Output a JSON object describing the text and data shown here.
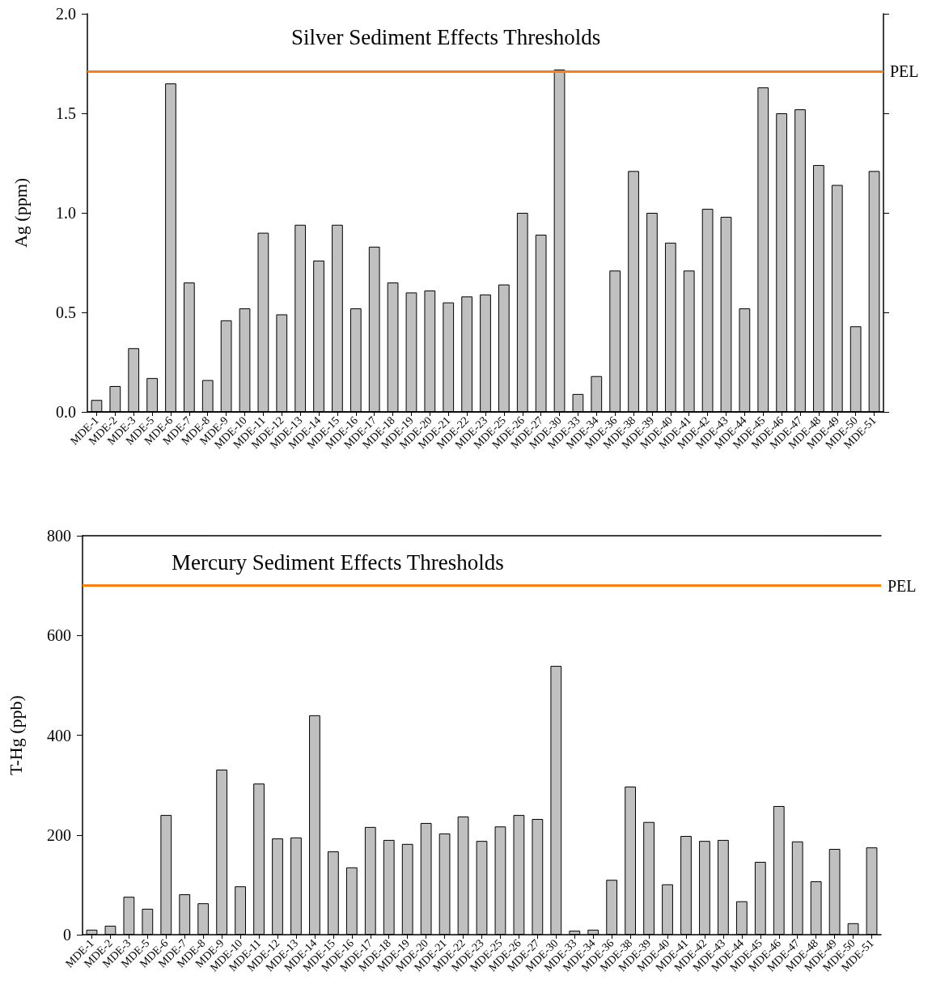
{
  "chart_data": [
    {
      "type": "bar",
      "title": "Silver Sediment Effects Thresholds",
      "ylabel": "Ag (ppm)",
      "categories": [
        "MDE-1",
        "MDE-2",
        "MDE-3",
        "MDE-5",
        "MDE-6",
        "MDE-7",
        "MDE-8",
        "MDE-9",
        "MDE-10",
        "MDE-11",
        "MDE-12",
        "MDE-13",
        "MDE-14",
        "MDE-15",
        "MDE-16",
        "MDE-17",
        "MDE-18",
        "MDE-19",
        "MDE-20",
        "MDE-21",
        "MDE-22",
        "MDE-23",
        "MDE-25",
        "MDE-26",
        "MDE-27",
        "MDE-30",
        "MDE-33",
        "MDE-34",
        "MDE-36",
        "MDE-38",
        "MDE-39",
        "MDE-40",
        "MDE-41",
        "MDE-42",
        "MDE-43",
        "MDE-44",
        "MDE-45",
        "MDE-46",
        "MDE-47",
        "MDE-48",
        "MDE-49",
        "MDE-50",
        "MDE-51"
      ],
      "values": [
        0.06,
        0.13,
        0.32,
        0.17,
        1.65,
        0.65,
        0.16,
        0.46,
        0.52,
        0.9,
        0.49,
        0.94,
        0.76,
        0.94,
        0.52,
        0.83,
        0.65,
        0.6,
        0.61,
        0.55,
        0.58,
        0.59,
        0.64,
        1.0,
        0.89,
        1.72,
        0.09,
        0.18,
        0.71,
        1.21,
        1.0,
        0.85,
        0.71,
        1.02,
        0.98,
        0.52,
        1.63,
        1.5,
        1.52,
        1.24,
        1.14,
        0.43,
        1.21
      ],
      "color": "#c0c0c0",
      "ylim": [
        0,
        2
      ],
      "yticks": [
        {
          "value": 0,
          "label": "0.0"
        },
        {
          "value": 0.5,
          "label": "0.5"
        },
        {
          "value": 1,
          "label": "1.0"
        },
        {
          "value": 1.5,
          "label": "1.5"
        },
        {
          "value": 2,
          "label": "2.0"
        }
      ],
      "ref_lines": [
        {
          "axis": "y",
          "value": 1.71,
          "label": "PEL",
          "color": "#ff7f0e"
        }
      ],
      "grid": false
    },
    {
      "type": "bar",
      "title": "Mercury Sediment Effects Thresholds",
      "ylabel": "T-Hg (ppb)",
      "categories": [
        "MDE-1",
        "MDE-2",
        "MDE-3",
        "MDE-5",
        "MDE-6",
        "MDE-7",
        "MDE-8",
        "MDE-9",
        "MDE-10",
        "MDE-11",
        "MDE-12",
        "MDE-13",
        "MDE-14",
        "MDE-15",
        "MDE-16",
        "MDE-17",
        "MDE-18",
        "MDE-19",
        "MDE-20",
        "MDE-21",
        "MDE-22",
        "MDE-23",
        "MDE-25",
        "MDE-26",
        "MDE-27",
        "MDE-30",
        "MDE-33",
        "MDE-34",
        "MDE-36",
        "MDE-38",
        "MDE-39",
        "MDE-40",
        "MDE-41",
        "MDE-42",
        "MDE-43",
        "MDE-44",
        "MDE-45",
        "MDE-46",
        "MDE-47",
        "MDE-48",
        "MDE-49",
        "MDE-50",
        "MDE-51"
      ],
      "values": [
        10,
        18,
        76,
        52,
        240,
        81,
        63,
        331,
        97,
        303,
        193,
        195,
        440,
        167,
        135,
        216,
        190,
        182,
        224,
        203,
        237,
        188,
        217,
        240,
        232,
        539,
        8,
        10,
        110,
        297,
        226,
        101,
        198,
        188,
        190,
        67,
        146,
        258,
        187,
        107,
        172,
        23,
        175
      ],
      "color": "#c0c0c0",
      "ylim": [
        0,
        800
      ],
      "yticks": [
        0,
        200,
        400,
        600,
        800
      ],
      "ref_lines": [
        {
          "axis": "y",
          "value": 700,
          "label": "PEL",
          "color": "#ff7f0e"
        }
      ],
      "grid": false
    }
  ]
}
